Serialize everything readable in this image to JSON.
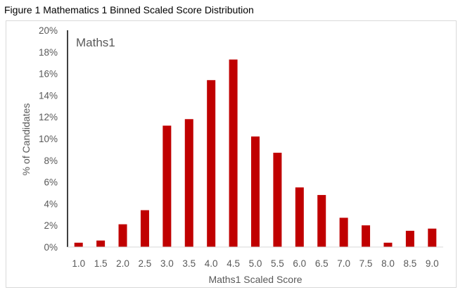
{
  "figure": {
    "caption": "Figure 1 Mathematics 1 Binned Scaled Score Distribution"
  },
  "chart_data": {
    "type": "bar",
    "title": "Maths1",
    "xlabel": "Maths1 Scaled Score",
    "ylabel": "% of Candidates",
    "categories": [
      "1.0",
      "1.5",
      "2.0",
      "2.5",
      "3.0",
      "3.5",
      "4.0",
      "4.5",
      "5.0",
      "5.5",
      "6.0",
      "6.5",
      "7.0",
      "7.5",
      "8.0",
      "8.5",
      "9.0"
    ],
    "values": [
      0.4,
      0.6,
      2.1,
      3.4,
      11.2,
      11.8,
      15.4,
      17.3,
      10.2,
      8.7,
      5.5,
      4.8,
      2.7,
      2.0,
      0.4,
      1.5,
      1.7
    ],
    "ylim": [
      0,
      20
    ],
    "yticks": [
      "0%",
      "2%",
      "4%",
      "6%",
      "8%",
      "10%",
      "12%",
      "14%",
      "16%",
      "18%",
      "20%"
    ],
    "bar_color": "#c00000",
    "grid": false,
    "legend": "none"
  }
}
